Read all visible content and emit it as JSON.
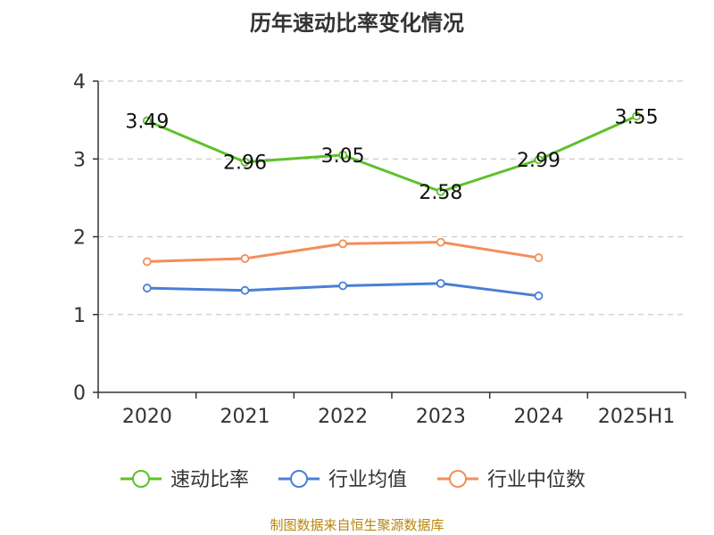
{
  "chart_data": {
    "type": "line",
    "title": "历年速动比率变化情况",
    "categories": [
      "2020",
      "2021",
      "2022",
      "2023",
      "2024",
      "2025H1"
    ],
    "y_ticks": [
      "0",
      "1",
      "2",
      "3",
      "4"
    ],
    "ylim": [
      0,
      4
    ],
    "grid": "horizontal dashed",
    "legend_position": "bottom",
    "series": [
      {
        "name": "速动比率",
        "color": "#5dc12a",
        "values": [
          3.49,
          2.96,
          3.05,
          2.58,
          2.99,
          3.55
        ],
        "labels": [
          "3.49",
          "2.96",
          "3.05",
          "2.58",
          "2.99",
          "3.55"
        ]
      },
      {
        "name": "行业均值",
        "color": "#4a7fd6",
        "values": [
          1.34,
          1.31,
          1.37,
          1.4,
          1.24,
          null
        ]
      },
      {
        "name": "行业中位数",
        "color": "#f28e5a",
        "values": [
          1.68,
          1.72,
          1.91,
          1.93,
          1.73,
          null
        ]
      }
    ]
  },
  "source_note": "制图数据来自恒生聚源数据库"
}
